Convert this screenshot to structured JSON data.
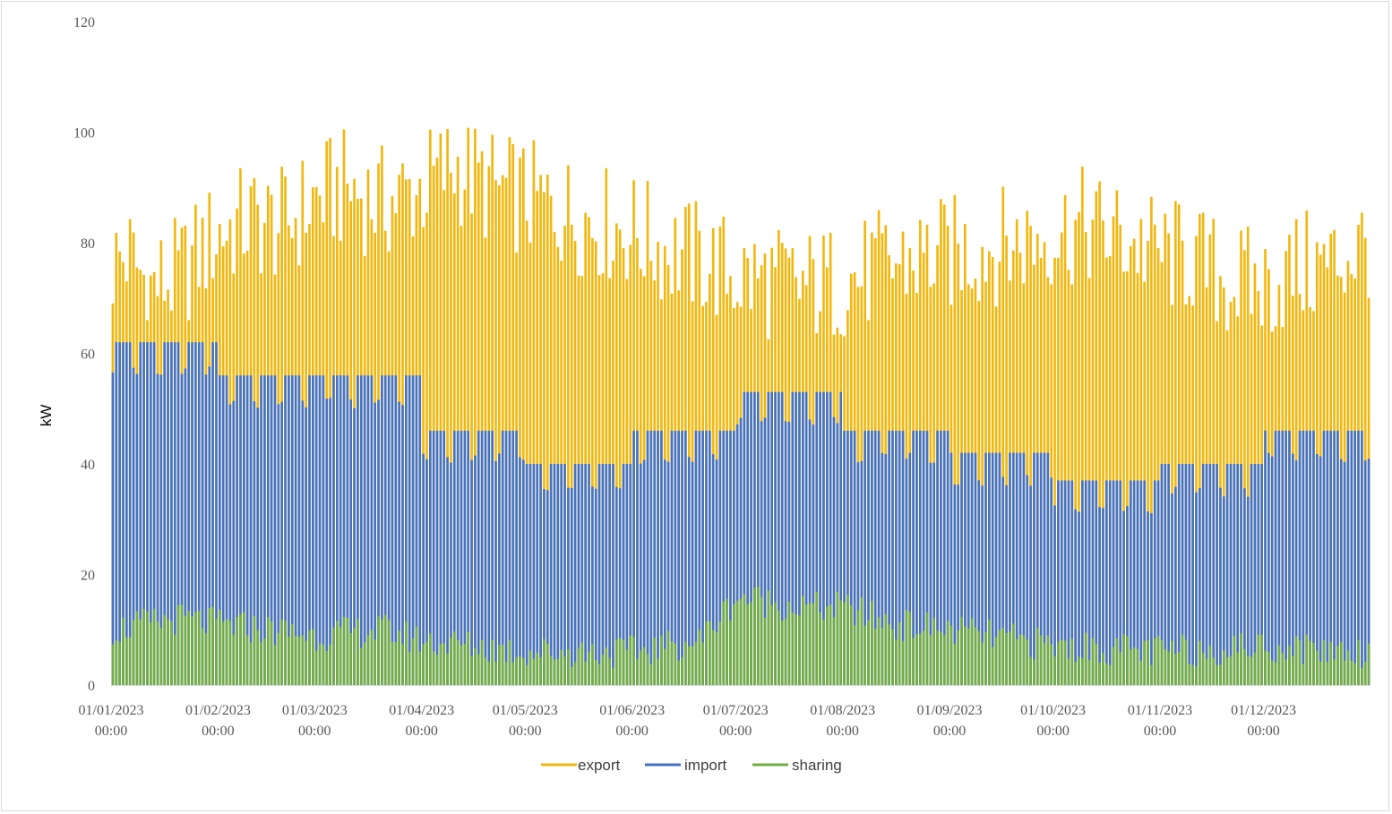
{
  "chart_data": {
    "type": "bar",
    "ylabel": "kW",
    "ylim": [
      0,
      120
    ],
    "ystep": 20,
    "grid": false,
    "legend_position": "bottom",
    "x_start": "2023-01-01",
    "x_end": "2023-12-31",
    "x_tick_labels": [
      {
        "date": "01/01/2023",
        "time": "00:00"
      },
      {
        "date": "01/02/2023",
        "time": "00:00"
      },
      {
        "date": "01/03/2023",
        "time": "00:00"
      },
      {
        "date": "01/04/2023",
        "time": "00:00"
      },
      {
        "date": "01/05/2023",
        "time": "00:00"
      },
      {
        "date": "01/06/2023",
        "time": "00:00"
      },
      {
        "date": "01/07/2023",
        "time": "00:00"
      },
      {
        "date": "01/08/2023",
        "time": "00:00"
      },
      {
        "date": "01/09/2023",
        "time": "00:00"
      },
      {
        "date": "01/10/2023",
        "time": "00:00"
      },
      {
        "date": "01/11/2023",
        "time": "00:00"
      },
      {
        "date": "01/12/2023",
        "time": "00:00"
      }
    ],
    "series": [
      {
        "name": "export",
        "color": "#f2b70d",
        "anchors": [
          [
            "2023-01-01",
            76
          ],
          [
            "2023-01-05",
            78
          ],
          [
            "2023-01-12",
            72
          ],
          [
            "2023-01-20",
            74
          ],
          [
            "2023-02-01",
            82
          ],
          [
            "2023-02-10",
            84
          ],
          [
            "2023-02-20",
            83
          ],
          [
            "2023-03-01",
            88
          ],
          [
            "2023-03-10",
            90
          ],
          [
            "2023-03-20",
            87
          ],
          [
            "2023-04-01",
            90
          ],
          [
            "2023-04-10",
            94
          ],
          [
            "2023-04-20",
            90
          ],
          [
            "2023-05-01",
            88
          ],
          [
            "2023-05-10",
            86
          ],
          [
            "2023-05-20",
            84
          ],
          [
            "2023-06-01",
            82
          ],
          [
            "2023-06-10",
            79
          ],
          [
            "2023-06-20",
            77
          ],
          [
            "2023-07-01",
            74
          ],
          [
            "2023-07-10",
            73
          ],
          [
            "2023-07-20",
            72
          ],
          [
            "2023-08-01",
            73
          ],
          [
            "2023-08-10",
            75
          ],
          [
            "2023-08-20",
            77
          ],
          [
            "2023-09-01",
            78
          ],
          [
            "2023-09-10",
            79
          ],
          [
            "2023-09-20",
            80
          ],
          [
            "2023-10-01",
            82
          ],
          [
            "2023-10-10",
            83
          ],
          [
            "2023-10-20",
            81
          ],
          [
            "2023-11-01",
            78
          ],
          [
            "2023-11-10",
            77
          ],
          [
            "2023-11-20",
            73
          ],
          [
            "2023-12-01",
            72
          ],
          [
            "2023-12-10",
            75
          ],
          [
            "2023-12-20",
            76
          ],
          [
            "2023-12-31",
            80
          ]
        ]
      },
      {
        "name": "import",
        "color": "#4472c4",
        "weekly_max": [
          [
            "2023-01-01",
            62
          ],
          [
            "2023-02-01",
            56
          ],
          [
            "2023-04-01",
            46
          ],
          [
            "2023-05-01",
            40
          ],
          [
            "2023-06-01",
            46
          ],
          [
            "2023-07-01",
            53
          ],
          [
            "2023-08-01",
            46
          ],
          [
            "2023-09-01",
            42
          ],
          [
            "2023-10-01",
            37
          ],
          [
            "2023-11-01",
            40
          ],
          [
            "2023-12-01",
            46
          ]
        ]
      },
      {
        "name": "sharing",
        "color": "#70ad47",
        "anchors": [
          [
            "2023-01-01",
            10
          ],
          [
            "2023-01-20",
            12
          ],
          [
            "2023-02-01",
            11
          ],
          [
            "2023-03-01",
            9
          ],
          [
            "2023-03-20",
            10
          ],
          [
            "2023-04-01",
            8
          ],
          [
            "2023-05-01",
            6
          ],
          [
            "2023-06-01",
            6
          ],
          [
            "2023-06-20",
            8
          ],
          [
            "2023-07-01",
            16
          ],
          [
            "2023-07-20",
            14
          ],
          [
            "2023-08-01",
            14
          ],
          [
            "2023-08-15",
            11
          ],
          [
            "2023-09-01",
            10
          ],
          [
            "2023-10-01",
            7
          ],
          [
            "2023-11-01",
            6
          ],
          [
            "2023-12-01",
            7
          ],
          [
            "2023-12-31",
            6
          ]
        ]
      }
    ],
    "legend": [
      "export",
      "import",
      "sharing"
    ]
  }
}
